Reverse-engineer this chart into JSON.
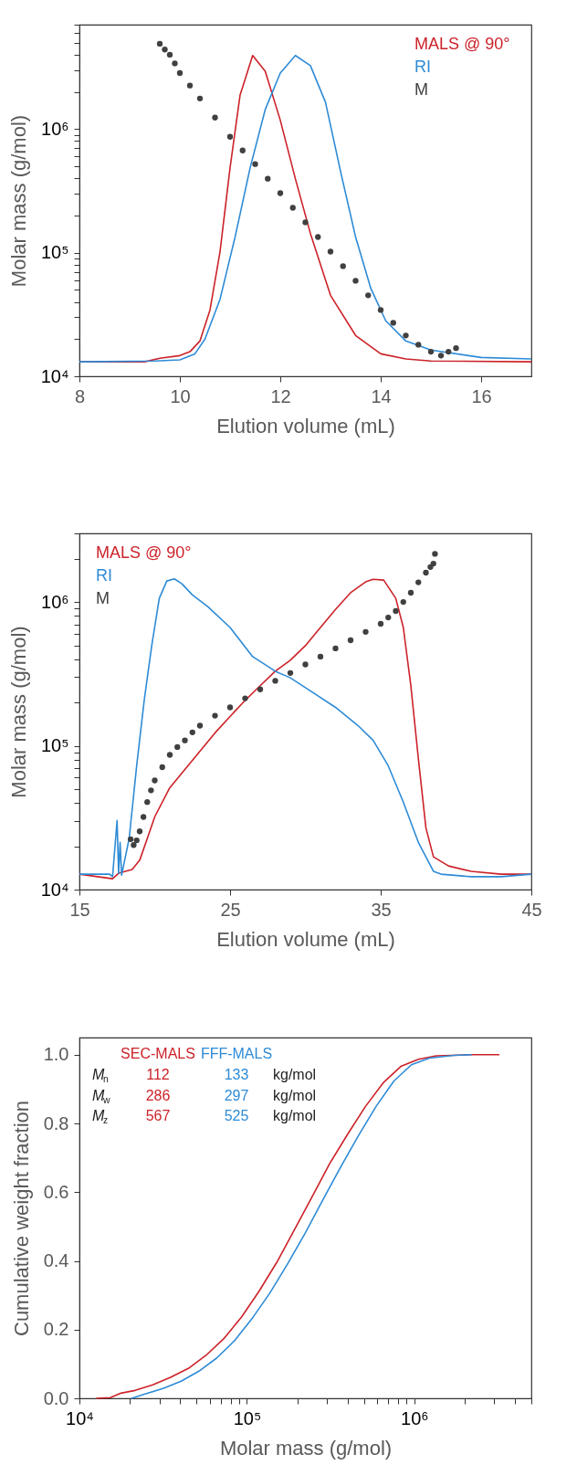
{
  "chart_data": [
    {
      "type": "line",
      "xlabel": "Elution volume (mL)",
      "ylabel": "Molar mass (g/mol)",
      "log": "y",
      "legend": "top right",
      "grid": false,
      "xlim": [
        8,
        17
      ],
      "xticks": [
        8,
        10,
        12,
        14,
        16
      ],
      "ylim": [
        10000,
        7000000
      ],
      "yticks": [
        {
          "value": 10000,
          "label": "10⁴"
        },
        {
          "value": 20000,
          "label": null
        },
        {
          "value": 30000,
          "label": null
        },
        {
          "value": 40000,
          "label": null
        },
        {
          "value": 50000,
          "label": null
        },
        {
          "value": 60000,
          "label": null
        },
        {
          "value": 70000,
          "label": null
        },
        {
          "value": 80000,
          "label": null
        },
        {
          "value": 90000,
          "label": null
        },
        {
          "value": 100000,
          "label": "10⁵"
        },
        {
          "value": 200000,
          "label": null
        },
        {
          "value": 300000,
          "label": null
        },
        {
          "value": 400000,
          "label": null
        },
        {
          "value": 500000,
          "label": null
        },
        {
          "value": 600000,
          "label": null
        },
        {
          "value": 700000,
          "label": null
        },
        {
          "value": 800000,
          "label": null
        },
        {
          "value": 900000,
          "label": null
        },
        {
          "value": 1000000,
          "label": "10⁶"
        },
        {
          "value": 2000000,
          "label": null
        },
        {
          "value": 3000000,
          "label": null
        },
        {
          "value": 4000000,
          "label": null
        },
        {
          "value": 5000000,
          "label": null
        },
        {
          "value": 6000000,
          "label": null
        },
        {
          "value": 7000000,
          "label": null
        }
      ],
      "series": [
        {
          "name": "MALS @ 90°",
          "color": "#cc2229",
          "x": [
            8,
            9.3,
            9.6,
            10,
            10.2,
            10.4,
            10.6,
            10.8,
            11,
            11.2,
            11.45,
            11.7,
            12,
            12.3,
            12.6,
            13,
            13.5,
            14,
            14.5,
            15,
            17
          ],
          "values": [
            13100,
            13100,
            14000,
            14700,
            15800,
            19300,
            34400,
            102000,
            487000,
            1890000,
            3940000,
            2940000,
            1180000,
            397000,
            143000,
            45200,
            21400,
            15200,
            13800,
            13300,
            13100
          ]
        },
        {
          "name": "RI",
          "color": "#2e8bd6",
          "x": [
            8,
            9.5,
            10,
            10.3,
            10.5,
            10.8,
            11.1,
            11.4,
            11.7,
            12,
            12.3,
            12.6,
            12.9,
            13.2,
            13.5,
            13.8,
            14.1,
            14.5,
            15,
            16,
            17
          ],
          "values": [
            13100,
            13300,
            13600,
            15200,
            20000,
            42000,
            134000,
            487000,
            1440000,
            2840000,
            3940000,
            3260000,
            1650000,
            455000,
            134000,
            51800,
            28100,
            19300,
            16300,
            14200,
            13800
          ]
        },
        {
          "name": "M",
          "type": "scatter",
          "marker": "circle",
          "color": "#404040",
          "x": [
            9.6,
            9.7,
            9.8,
            9.9,
            10,
            10.2,
            10.4,
            10.7,
            11,
            11.25,
            11.5,
            11.75,
            12,
            12.25,
            12.5,
            12.75,
            13,
            13.25,
            13.5,
            13.75,
            14,
            14.25,
            14.5,
            14.75,
            15,
            15.2,
            15.35,
            15.5
          ],
          "values": [
            4900000,
            4400000,
            4000000,
            3400000,
            2840000,
            2250000,
            1770000,
            1240000,
            867000,
            672000,
            521000,
            397000,
            303000,
            231000,
            176000,
            134000,
            102000,
            77800,
            59300,
            45200,
            34400,
            27100,
            21400,
            18000,
            15800,
            14700,
            15800,
            16900
          ]
        }
      ]
    },
    {
      "type": "line",
      "xlabel": "Elution volume (mL)",
      "ylabel": "Molar mass (g/mol)",
      "log": "y",
      "legend": "top left",
      "grid": false,
      "xlim": [
        15,
        45
      ],
      "xticks": [
        15,
        25,
        35,
        45
      ],
      "ylim": [
        10000,
        3000000
      ],
      "yticks": [
        {
          "value": 10000,
          "label": "10⁴"
        },
        {
          "value": 20000,
          "label": null
        },
        {
          "value": 30000,
          "label": null
        },
        {
          "value": 40000,
          "label": null
        },
        {
          "value": 50000,
          "label": null
        },
        {
          "value": 60000,
          "label": null
        },
        {
          "value": 70000,
          "label": null
        },
        {
          "value": 80000,
          "label": null
        },
        {
          "value": 90000,
          "label": null
        },
        {
          "value": 100000,
          "label": "10⁵"
        },
        {
          "value": 200000,
          "label": null
        },
        {
          "value": 300000,
          "label": null
        },
        {
          "value": 400000,
          "label": null
        },
        {
          "value": 500000,
          "label": null
        },
        {
          "value": 600000,
          "label": null
        },
        {
          "value": 700000,
          "label": null
        },
        {
          "value": 800000,
          "label": null
        },
        {
          "value": 900000,
          "label": null
        },
        {
          "value": 1000000,
          "label": "10⁶"
        },
        {
          "value": 2000000,
          "label": null
        },
        {
          "value": 3000000,
          "label": null
        }
      ],
      "series": [
        {
          "name": "MALS @ 90°",
          "color": "#cc2229",
          "x": [
            15,
            17.2,
            17.6,
            18.5,
            19,
            19.5,
            20,
            21,
            22,
            23,
            24,
            25,
            26,
            27,
            28,
            29,
            30,
            31,
            32,
            33,
            34,
            34.5,
            35.2,
            36,
            36.5,
            37,
            37.5,
            38,
            38.5,
            39.5,
            41,
            43,
            45
          ],
          "values": [
            12800,
            11900,
            13000,
            13800,
            16000,
            22600,
            32100,
            51100,
            68400,
            91600,
            123000,
            160000,
            207000,
            262000,
            330000,
            394000,
            497000,
            665000,
            889000,
            1160000,
            1380000,
            1440000,
            1420000,
            1060000,
            665000,
            262000,
            81500,
            26900,
            16900,
            14600,
            13400,
            12800,
            12800
          ]
        },
        {
          "name": "RI",
          "color": "#2e8bd6",
          "x": [
            15,
            17,
            17.2,
            17.5,
            17.6,
            17.7,
            17.8,
            18.3,
            18.8,
            19.3,
            19.8,
            20.3,
            20.8,
            21.3,
            21.8,
            22.5,
            23.5,
            25,
            26.5,
            28,
            29,
            30,
            32,
            33.5,
            34.5,
            35.5,
            36.5,
            37.5,
            38.5,
            39,
            41,
            43,
            45
          ],
          "values": [
            12800,
            12800,
            12300,
            30300,
            12900,
            21300,
            12600,
            22600,
            72600,
            207000,
            497000,
            1060000,
            1400000,
            1450000,
            1340000,
            1120000,
            933000,
            665000,
            417000,
            330000,
            297000,
            254000,
            185000,
            138000,
            109000,
            72600,
            40600,
            21300,
            13400,
            12800,
            12300,
            12300,
            12800
          ]
        },
        {
          "name": "M",
          "type": "scatter",
          "marker": "circle",
          "color": "#404040",
          "x": [
            18.4,
            18.6,
            18.8,
            19,
            19.25,
            19.5,
            19.75,
            20,
            20.5,
            21,
            21.5,
            22,
            22.5,
            23,
            24,
            25,
            26,
            27,
            28,
            29,
            30,
            31,
            32,
            33,
            34,
            35,
            35.5,
            36,
            36.5,
            37,
            37.5,
            38,
            38.3,
            38.5,
            38.6
          ],
          "values": [
            22400,
            20400,
            22000,
            25400,
            32000,
            40600,
            49000,
            57400,
            71000,
            86500,
            98000,
            109000,
            124000,
            138000,
            162000,
            185000,
            214000,
            247000,
            283000,
            321000,
            368000,
            417000,
            476000,
            542000,
            620000,
            705000,
            780000,
            865000,
            1000000,
            1160000,
            1370000,
            1600000,
            1750000,
            1850000,
            2160000
          ]
        }
      ]
    },
    {
      "type": "line",
      "xlabel": "Molar mass (g/mol)",
      "ylabel": "Cumulative weight fraction",
      "log": "x",
      "legend": false,
      "grid": false,
      "xlim": [
        10000,
        5000000
      ],
      "xticks": [
        {
          "value": 10000,
          "label": "10⁴"
        },
        {
          "value": 20000,
          "label": null
        },
        {
          "value": 30000,
          "label": null
        },
        {
          "value": 40000,
          "label": null
        },
        {
          "value": 50000,
          "label": null
        },
        {
          "value": 60000,
          "label": null
        },
        {
          "value": 70000,
          "label": null
        },
        {
          "value": 80000,
          "label": null
        },
        {
          "value": 90000,
          "label": null
        },
        {
          "value": 100000,
          "label": "10⁵"
        },
        {
          "value": 200000,
          "label": null
        },
        {
          "value": 300000,
          "label": null
        },
        {
          "value": 400000,
          "label": null
        },
        {
          "value": 500000,
          "label": null
        },
        {
          "value": 600000,
          "label": null
        },
        {
          "value": 700000,
          "label": null
        },
        {
          "value": 800000,
          "label": null
        },
        {
          "value": 900000,
          "label": null
        },
        {
          "value": 1000000,
          "label": "10⁶"
        },
        {
          "value": 2000000,
          "label": null
        },
        {
          "value": 3000000,
          "label": null
        },
        {
          "value": 4000000,
          "label": null
        },
        {
          "value": 5000000,
          "label": null
        }
      ],
      "ylim": [
        0,
        1.05
      ],
      "yticks": [
        {
          "value": 0,
          "label": "0.0"
        },
        0.2,
        0.4,
        0.6,
        0.8,
        {
          "value": 1,
          "label": "1.0"
        }
      ],
      "series": [
        {
          "name": "SEC-MALS",
          "color": "#cc2229",
          "x": [
            12600,
            15300,
            17700,
            21500,
            27400,
            35000,
            44700,
            57000,
            72600,
            92700,
            118000,
            151000,
            193000,
            246000,
            313000,
            400000,
            510000,
            651000,
            831000,
            1060000,
            1350000,
            2200000,
            3220000
          ],
          "values": [
            0,
            0.002,
            0.015,
            0.023,
            0.039,
            0.061,
            0.087,
            0.125,
            0.173,
            0.236,
            0.311,
            0.396,
            0.492,
            0.588,
            0.684,
            0.769,
            0.849,
            0.918,
            0.966,
            0.987,
            0.997,
            1,
            1
          ]
        },
        {
          "name": "FFF-MALS",
          "color": "#2e8bd6",
          "x": [
            20500,
            24900,
            31800,
            40500,
            51700,
            65900,
            84100,
            107000,
            137000,
            175000,
            223000,
            284000,
            363000,
            463000,
            590000,
            754000,
            961000,
            1230000,
            1730000,
            2200000
          ],
          "values": [
            0,
            0.013,
            0.029,
            0.05,
            0.079,
            0.117,
            0.167,
            0.231,
            0.306,
            0.391,
            0.481,
            0.577,
            0.673,
            0.764,
            0.849,
            0.923,
            0.971,
            0.99,
            0.998,
            1
          ]
        }
      ],
      "annotations": [
        "M$_{n}$",
        "112",
        "133",
        "kg/mol",
        "M$_{w}$",
        "286",
        "297",
        "kg/mol",
        "M$_{z}$",
        "567",
        "525",
        "kg/mol"
      ]
    }
  ]
}
